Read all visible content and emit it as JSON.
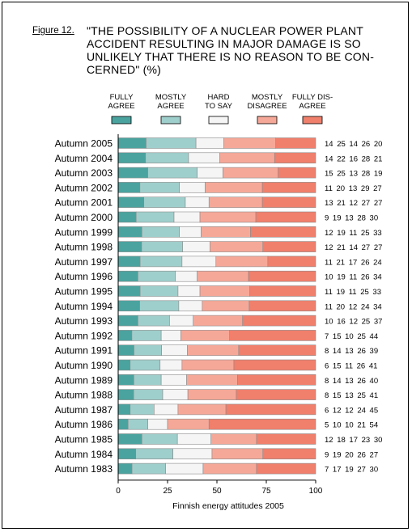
{
  "figure_label": "Figure 12.",
  "title_lines": [
    "\"THE POSSIBILITY OF A NUCLEAR POWER PLANT",
    "ACCIDENT RESULTING IN MAJOR DAMAGE IS SO",
    "UNLIKELY THAT THERE IS NO REASON TO BE CON-",
    "CERNED\" (%)"
  ],
  "colors": [
    "#4aa39f",
    "#9fcfcc",
    "#f5f5f5",
    "#f6a898",
    "#f07f6c"
  ],
  "chart_data": {
    "type": "bar",
    "orientation": "horizontal",
    "stacked": true,
    "xlabel": "Finnish energy attitudes 2005",
    "xlim": [
      0,
      100
    ],
    "xticks": [
      "0",
      "25",
      "50",
      "75",
      "100"
    ],
    "legend": [
      [
        "FULLY",
        "AGREE"
      ],
      [
        "MOSTLY",
        "AGREE"
      ],
      [
        "HARD",
        "TO SAY"
      ],
      [
        "MOSTLY",
        "DISAGREE"
      ],
      [
        "FULLY DIS-",
        "AGREE"
      ]
    ],
    "series_keys": [
      "fully_agree",
      "mostly_agree",
      "hard_to_say",
      "mostly_disagree",
      "fully_disagree"
    ],
    "categories": [
      "Autumn 2005",
      "Autumn 2004",
      "Autumn 2003",
      "Autumn 2002",
      "Autumn 2001",
      "Autumn 2000",
      "Autumn 1999",
      "Autumn 1998",
      "Autumn 1997",
      "Autumn 1996",
      "Autumn 1995",
      "Autumn 1994",
      "Autumn 1993",
      "Autumn 1992",
      "Autumn 1991",
      "Autumn 1990",
      "Autumn 1989",
      "Autumn 1988",
      "Autumn 1987",
      "Autumn 1986",
      "Autumn 1985",
      "Autumn 1984",
      "Autumn 1983"
    ],
    "values": [
      [
        14,
        25,
        14,
        26,
        20
      ],
      [
        14,
        22,
        16,
        28,
        21
      ],
      [
        15,
        25,
        13,
        28,
        19
      ],
      [
        11,
        20,
        13,
        29,
        27
      ],
      [
        13,
        21,
        12,
        27,
        27
      ],
      [
        9,
        19,
        13,
        28,
        30
      ],
      [
        12,
        19,
        11,
        25,
        33
      ],
      [
        12,
        21,
        14,
        27,
        27
      ],
      [
        11,
        21,
        17,
        26,
        24
      ],
      [
        10,
        19,
        11,
        26,
        34
      ],
      [
        11,
        19,
        11,
        25,
        33
      ],
      [
        11,
        20,
        12,
        24,
        34
      ],
      [
        10,
        16,
        12,
        25,
        37
      ],
      [
        7,
        15,
        10,
        25,
        44
      ],
      [
        8,
        14,
        13,
        26,
        39
      ],
      [
        6,
        15,
        11,
        26,
        41
      ],
      [
        8,
        14,
        13,
        26,
        40
      ],
      [
        8,
        15,
        13,
        25,
        41
      ],
      [
        6,
        12,
        12,
        24,
        45
      ],
      [
        5,
        10,
        10,
        21,
        54
      ],
      [
        12,
        18,
        17,
        23,
        30
      ],
      [
        9,
        19,
        20,
        26,
        27
      ],
      [
        7,
        17,
        19,
        27,
        30
      ]
    ]
  }
}
